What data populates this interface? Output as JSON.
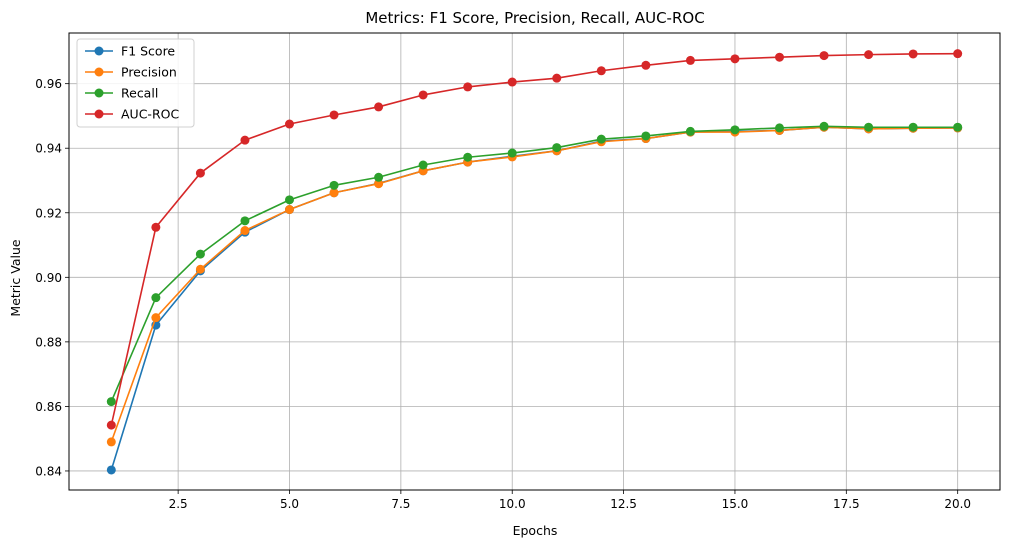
{
  "chart_data": {
    "type": "line",
    "title": "Metrics: F1 Score, Precision, Recall, AUC-ROC",
    "xlabel": "Epochs",
    "ylabel": "Metric Value",
    "xlim": [
      0.05,
      20.95
    ],
    "ylim": [
      0.8341,
      0.9757
    ],
    "x_ticks": [
      2.5,
      5.0,
      7.5,
      10.0,
      12.5,
      15.0,
      17.5,
      20.0
    ],
    "x_tick_labels": [
      "2.5",
      "5.0",
      "7.5",
      "10.0",
      "12.5",
      "15.0",
      "17.5",
      "20.0"
    ],
    "y_ticks": [
      0.84,
      0.86,
      0.88,
      0.9,
      0.92,
      0.94,
      0.96
    ],
    "y_tick_labels": [
      "0.84",
      "0.86",
      "0.88",
      "0.90",
      "0.92",
      "0.94",
      "0.96"
    ],
    "grid": true,
    "legend_position": "top-left",
    "x": [
      1,
      2,
      3,
      4,
      5,
      6,
      7,
      8,
      9,
      10,
      11,
      12,
      13,
      14,
      15,
      16,
      17,
      18,
      19,
      20
    ],
    "series": [
      {
        "name": "F1 Score",
        "color": "#1f77b4",
        "values": [
          0.8403,
          0.8852,
          0.902,
          0.914,
          0.921,
          0.9262,
          0.9291,
          0.933,
          0.9357,
          0.9375,
          0.9392,
          0.9422,
          0.943,
          0.945,
          0.9452,
          0.9455,
          0.9465,
          0.946,
          0.9462,
          0.9463
        ]
      },
      {
        "name": "Precision",
        "color": "#ff7f0e",
        "values": [
          0.849,
          0.8875,
          0.9025,
          0.9145,
          0.921,
          0.9262,
          0.929,
          0.933,
          0.9357,
          0.9373,
          0.9392,
          0.942,
          0.943,
          0.945,
          0.945,
          0.9455,
          0.9465,
          0.946,
          0.9462,
          0.9463
        ]
      },
      {
        "name": "Recall",
        "color": "#2ca02c",
        "values": [
          0.8615,
          0.8937,
          0.9072,
          0.9175,
          0.924,
          0.9285,
          0.931,
          0.9348,
          0.9372,
          0.9385,
          0.9402,
          0.9428,
          0.9438,
          0.9452,
          0.9457,
          0.9463,
          0.9468,
          0.9465,
          0.9465,
          0.9465
        ]
      },
      {
        "name": "AUC-ROC",
        "color": "#d62728",
        "values": [
          0.8542,
          0.9155,
          0.9323,
          0.9425,
          0.9475,
          0.9503,
          0.9528,
          0.9565,
          0.959,
          0.9605,
          0.9617,
          0.964,
          0.9657,
          0.9672,
          0.9677,
          0.9682,
          0.9687,
          0.969,
          0.9692,
          0.9693
        ]
      }
    ]
  }
}
